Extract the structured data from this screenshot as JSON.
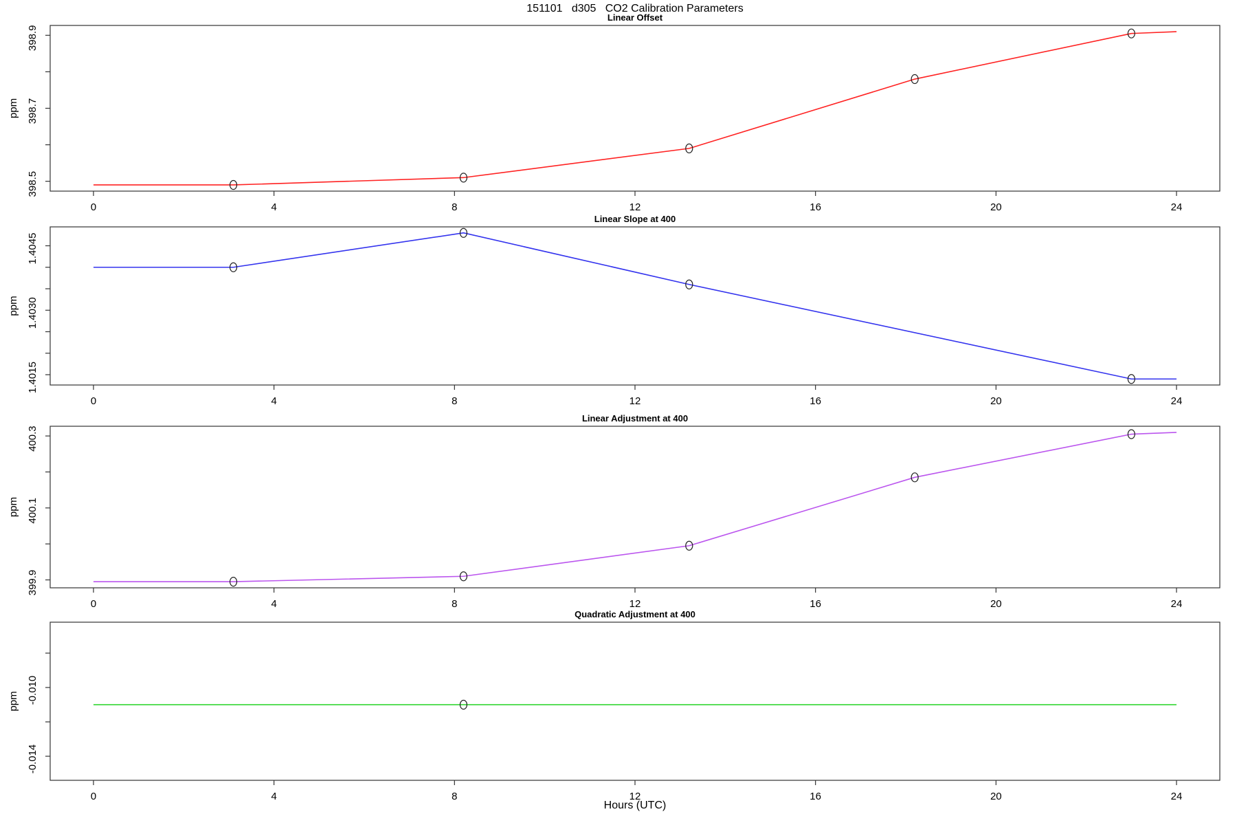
{
  "title": "151101   d305   CO2 Calibration Parameters",
  "xlabel": "Hours (UTC)",
  "x_axis": {
    "xlim": [
      -0.96,
      24.96
    ],
    "ticks": [
      {
        "v": 0,
        "label": "0"
      },
      {
        "v": 4,
        "label": "4"
      },
      {
        "v": 8,
        "label": "8"
      },
      {
        "v": 12,
        "label": "12"
      },
      {
        "v": 16,
        "label": "16"
      },
      {
        "v": 20,
        "label": "20"
      },
      {
        "v": 24,
        "label": "24"
      }
    ]
  },
  "chart_data": [
    {
      "type": "line",
      "title": "Linear Offset",
      "ylabel": "ppm",
      "color": "#ff2222",
      "marker_color": "#222222",
      "x": [
        0,
        3.1,
        8.2,
        13.2,
        18.2,
        23,
        24
      ],
      "y": [
        398.49,
        398.49,
        398.51,
        398.59,
        398.78,
        398.905,
        398.91
      ],
      "markers": {
        "x": [
          3.1,
          8.2,
          13.2,
          18.2,
          23
        ],
        "y": [
          398.49,
          398.51,
          398.59,
          398.78,
          398.905
        ]
      },
      "ylim": [
        398.473,
        398.927
      ],
      "yticks": [
        {
          "v": 398.5,
          "label": "398.5"
        },
        {
          "v": 398.6,
          "label": ""
        },
        {
          "v": 398.7,
          "label": "398.7"
        },
        {
          "v": 398.8,
          "label": ""
        },
        {
          "v": 398.9,
          "label": "398.9"
        }
      ]
    },
    {
      "type": "line",
      "title": "Linear Slope at 400",
      "ylabel": "ppm",
      "color": "#3333ee",
      "marker_color": "#222222",
      "x": [
        0,
        3.1,
        8.2,
        13.2,
        23,
        24
      ],
      "y": [
        1.404,
        1.404,
        1.4048,
        1.4036,
        1.4014,
        1.4014
      ],
      "markers": {
        "x": [
          3.1,
          8.2,
          13.2,
          23
        ],
        "y": [
          1.404,
          1.4048,
          1.4036,
          1.4014
        ]
      },
      "ylim": [
        1.40126,
        1.40494
      ],
      "yticks": [
        {
          "v": 1.4015,
          "label": "1.4015"
        },
        {
          "v": 1.402,
          "label": ""
        },
        {
          "v": 1.4025,
          "label": ""
        },
        {
          "v": 1.403,
          "label": "1.4030"
        },
        {
          "v": 1.4035,
          "label": ""
        },
        {
          "v": 1.404,
          "label": ""
        },
        {
          "v": 1.4045,
          "label": "1.4045"
        }
      ]
    },
    {
      "type": "line",
      "title": "Linear Adjustment at 400",
      "ylabel": "ppm",
      "color": "#bb55ee",
      "marker_color": "#222222",
      "x": [
        0,
        3.1,
        8.2,
        13.2,
        18.2,
        23,
        24
      ],
      "y": [
        399.895,
        399.895,
        399.91,
        399.995,
        400.185,
        400.305,
        400.31
      ],
      "markers": {
        "x": [
          3.1,
          8.2,
          13.2,
          18.2,
          23
        ],
        "y": [
          399.895,
          399.91,
          399.995,
          400.185,
          400.305
        ]
      },
      "ylim": [
        399.878,
        400.327
      ],
      "yticks": [
        {
          "v": 399.9,
          "label": "399.9"
        },
        {
          "v": 400.0,
          "label": ""
        },
        {
          "v": 400.1,
          "label": "400.1"
        },
        {
          "v": 400.2,
          "label": ""
        },
        {
          "v": 400.3,
          "label": "400.3"
        }
      ]
    },
    {
      "type": "line",
      "title": "Quadratic Adjustment at 400",
      "ylabel": "ppm",
      "color": "#22d422",
      "marker_color": "#222222",
      "x": [
        0,
        8.2,
        24
      ],
      "y": [
        -0.011,
        -0.011,
        -0.011
      ],
      "markers": {
        "x": [
          8.2
        ],
        "y": [
          -0.011
        ]
      },
      "ylim": [
        -0.0154,
        -0.0062
      ],
      "yticks": [
        {
          "v": -0.014,
          "label": "-0.014"
        },
        {
          "v": -0.012,
          "label": ""
        },
        {
          "v": -0.01,
          "label": "-0.010"
        },
        {
          "v": -0.008,
          "label": ""
        }
      ]
    }
  ]
}
